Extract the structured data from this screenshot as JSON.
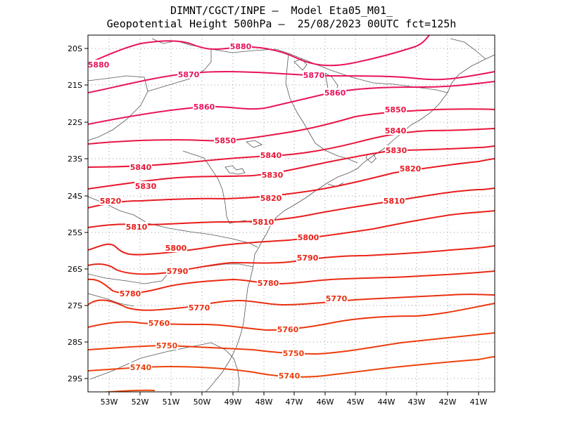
{
  "header": {
    "line1": "DIMNT/CGCT/INPE –  Model Eta05_M01_",
    "line2": "Geopotential Height 500hPa –  25/08/2023 00UTC fct=125h"
  },
  "axes": {
    "lat_labels": [
      "20S",
      "21S",
      "22S",
      "23S",
      "24S",
      "25S",
      "26S",
      "27S",
      "28S",
      "29S"
    ],
    "lon_labels": [
      "53W",
      "52W",
      "51W",
      "50W",
      "49W",
      "48W",
      "47W",
      "46W",
      "45W",
      "44W",
      "43W",
      "42W",
      "41W"
    ],
    "lat_range": [
      -29.4,
      -19.8
    ],
    "lon_range": [
      -53.6,
      -40.4
    ],
    "grid": "dotted"
  },
  "contours": [
    {
      "value": 5880,
      "color": "#e8135f",
      "labels": [
        "5880",
        "5880"
      ]
    },
    {
      "value": 5870,
      "color": "#e8135f",
      "labels": [
        "5870",
        "5870"
      ]
    },
    {
      "value": 5860,
      "color": "#e8135f",
      "labels": [
        "5860",
        "5860"
      ]
    },
    {
      "value": 5850,
      "color": "#e81548",
      "labels": [
        "5850",
        "5850"
      ]
    },
    {
      "value": 5840,
      "color": "#e8173a",
      "labels": [
        "5840",
        "5840",
        "5840"
      ]
    },
    {
      "value": 5830,
      "color": "#e8172f",
      "labels": [
        "5830",
        "5830",
        "5830"
      ]
    },
    {
      "value": 5820,
      "color": "#e81a22",
      "labels": [
        "5820",
        "5820",
        "5820"
      ]
    },
    {
      "value": 5810,
      "color": "#e81c1c",
      "labels": [
        "5810",
        "5810",
        "5810"
      ]
    },
    {
      "value": 5800,
      "color": "#e82018",
      "labels": [
        "5800",
        "5800"
      ]
    },
    {
      "value": 5790,
      "color": "#e92416",
      "labels": [
        "5790",
        "5790"
      ]
    },
    {
      "value": 5780,
      "color": "#ea2a14",
      "labels": [
        "5780",
        "5780"
      ]
    },
    {
      "value": 5770,
      "color": "#ea3012",
      "labels": [
        "5770",
        "5770"
      ]
    },
    {
      "value": 5760,
      "color": "#eb3610",
      "labels": [
        "5760",
        "5760"
      ]
    },
    {
      "value": 5750,
      "color": "#ec3d0e",
      "labels": [
        "5750",
        "5750"
      ]
    },
    {
      "value": 5740,
      "color": "#ed430c",
      "labels": [
        "5740",
        "5740"
      ]
    }
  ]
}
